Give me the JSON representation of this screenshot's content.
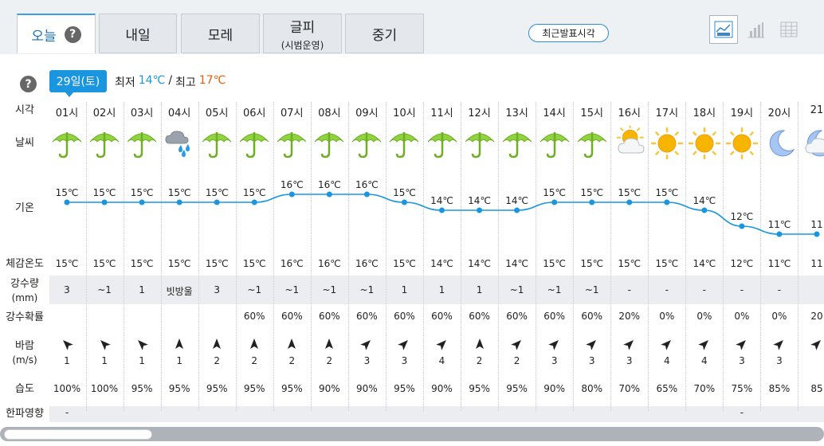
{
  "tabs": [
    {
      "label": "오늘",
      "sub": "",
      "active": true
    },
    {
      "label": "내일",
      "sub": ""
    },
    {
      "label": "모레",
      "sub": ""
    },
    {
      "label": "글피",
      "sub": "(시범운영)"
    },
    {
      "label": "중기",
      "sub": ""
    }
  ],
  "help_mark": "?",
  "recent_button": "최근발표시각",
  "view_buttons": [
    "graph-view-icon",
    "bar-view-icon",
    "table-view-icon"
  ],
  "day": {
    "badge": "29일(토)",
    "min_label": "최저",
    "min": "14℃",
    "sep": "/",
    "max_label": "최고",
    "max": "17℃",
    "color_min": "#1a95e0",
    "color_max": "#e85a00"
  },
  "labels": {
    "time": "시각",
    "weather": "날씨",
    "temp": "기온",
    "feel": "체감온도",
    "precip": "강수량",
    "precip_unit": "(mm)",
    "prob": "강수확률",
    "wind": "바람",
    "wind_unit": "(m/s)",
    "humidity": "습도",
    "cold": "한파영향"
  },
  "hours": [
    {
      "time": "01시",
      "icon": "umbrella",
      "temp": 15,
      "temp_text": "15℃",
      "feel": "15℃",
      "precip": "3",
      "prob": "",
      "wind_dir": "NW",
      "wind": "1",
      "humidity": "100%",
      "cold": "-"
    },
    {
      "time": "02시",
      "icon": "umbrella",
      "temp": 15,
      "temp_text": "15℃",
      "feel": "15℃",
      "precip": "~1",
      "prob": "",
      "wind_dir": "NW",
      "wind": "1",
      "humidity": "100%",
      "cold": ""
    },
    {
      "time": "03시",
      "icon": "umbrella",
      "temp": 15,
      "temp_text": "15℃",
      "feel": "15℃",
      "precip": "1",
      "prob": "",
      "wind_dir": "NW",
      "wind": "1",
      "humidity": "95%",
      "cold": ""
    },
    {
      "time": "04시",
      "icon": "cloud-rain",
      "temp": 15,
      "temp_text": "15℃",
      "feel": "15℃",
      "precip": "빗방울",
      "prob": "",
      "wind_dir": "N",
      "wind": "1",
      "humidity": "95%",
      "cold": ""
    },
    {
      "time": "05시",
      "icon": "umbrella",
      "temp": 15,
      "temp_text": "15℃",
      "feel": "15℃",
      "precip": "3",
      "prob": "",
      "wind_dir": "N",
      "wind": "2",
      "humidity": "95%",
      "cold": ""
    },
    {
      "time": "06시",
      "icon": "umbrella",
      "temp": 15,
      "temp_text": "15℃",
      "feel": "15℃",
      "precip": "~1",
      "prob": "60%",
      "wind_dir": "N",
      "wind": "2",
      "humidity": "95%",
      "cold": ""
    },
    {
      "time": "07시",
      "icon": "umbrella",
      "temp": 16,
      "temp_text": "16℃",
      "feel": "16℃",
      "precip": "~1",
      "prob": "60%",
      "wind_dir": "N",
      "wind": "2",
      "humidity": "95%",
      "cold": ""
    },
    {
      "time": "08시",
      "icon": "umbrella",
      "temp": 16,
      "temp_text": "16℃",
      "feel": "16℃",
      "precip": "~1",
      "prob": "60%",
      "wind_dir": "N",
      "wind": "2",
      "humidity": "90%",
      "cold": ""
    },
    {
      "time": "09시",
      "icon": "umbrella",
      "temp": 16,
      "temp_text": "16℃",
      "feel": "16℃",
      "precip": "~1",
      "prob": "60%",
      "wind_dir": "NE",
      "wind": "3",
      "humidity": "90%",
      "cold": ""
    },
    {
      "time": "10시",
      "icon": "umbrella",
      "temp": 15,
      "temp_text": "15℃",
      "feel": "15℃",
      "precip": "1",
      "prob": "60%",
      "wind_dir": "NE",
      "wind": "3",
      "humidity": "95%",
      "cold": ""
    },
    {
      "time": "11시",
      "icon": "umbrella",
      "temp": 14,
      "temp_text": "14℃",
      "feel": "14℃",
      "precip": "1",
      "prob": "60%",
      "wind_dir": "NE",
      "wind": "4",
      "humidity": "90%",
      "cold": ""
    },
    {
      "time": "12시",
      "icon": "umbrella",
      "temp": 14,
      "temp_text": "14℃",
      "feel": "14℃",
      "precip": "1",
      "prob": "60%",
      "wind_dir": "N",
      "wind": "2",
      "humidity": "95%",
      "cold": ""
    },
    {
      "time": "13시",
      "icon": "umbrella",
      "temp": 14,
      "temp_text": "14℃",
      "feel": "14℃",
      "precip": "~1",
      "prob": "60%",
      "wind_dir": "NE",
      "wind": "2",
      "humidity": "95%",
      "cold": ""
    },
    {
      "time": "14시",
      "icon": "umbrella",
      "temp": 15,
      "temp_text": "15℃",
      "feel": "15℃",
      "precip": "~1",
      "prob": "60%",
      "wind_dir": "NE",
      "wind": "3",
      "humidity": "90%",
      "cold": ""
    },
    {
      "time": "15시",
      "icon": "umbrella",
      "temp": 15,
      "temp_text": "15℃",
      "feel": "15℃",
      "precip": "~1",
      "prob": "60%",
      "wind_dir": "NE",
      "wind": "3",
      "humidity": "80%",
      "cold": ""
    },
    {
      "time": "16시",
      "icon": "sun-cloud",
      "temp": 15,
      "temp_text": "15℃",
      "feel": "15℃",
      "precip": "-",
      "prob": "20%",
      "wind_dir": "NE",
      "wind": "3",
      "humidity": "70%",
      "cold": ""
    },
    {
      "time": "17시",
      "icon": "sun",
      "temp": 15,
      "temp_text": "15℃",
      "feel": "15℃",
      "precip": "-",
      "prob": "0%",
      "wind_dir": "NE",
      "wind": "4",
      "humidity": "65%",
      "cold": ""
    },
    {
      "time": "18시",
      "icon": "sun",
      "temp": 14,
      "temp_text": "14℃",
      "feel": "14℃",
      "precip": "-",
      "prob": "0%",
      "wind_dir": "NE",
      "wind": "4",
      "humidity": "70%",
      "cold": ""
    },
    {
      "time": "19시",
      "icon": "sun",
      "temp": 12,
      "temp_text": "12℃",
      "feel": "12℃",
      "precip": "-",
      "prob": "0%",
      "wind_dir": "NE",
      "wind": "3",
      "humidity": "75%",
      "cold": "-"
    },
    {
      "time": "20시",
      "icon": "moon",
      "temp": 11,
      "temp_text": "11℃",
      "feel": "11℃",
      "precip": "-",
      "prob": "0%",
      "wind_dir": "NE",
      "wind": "3",
      "humidity": "85%",
      "cold": ""
    },
    {
      "time": "21",
      "icon": "moon-cloud",
      "temp": 11,
      "temp_text": "11",
      "feel": "11",
      "precip": "",
      "prob": "20",
      "wind_dir": "NE",
      "wind": "",
      "humidity": "85",
      "cold": ""
    }
  ],
  "colors": {
    "accent": "#1a95e0",
    "line": "#1a95e0",
    "umbrella": "#8fd33f",
    "sun": "#f5a800"
  }
}
